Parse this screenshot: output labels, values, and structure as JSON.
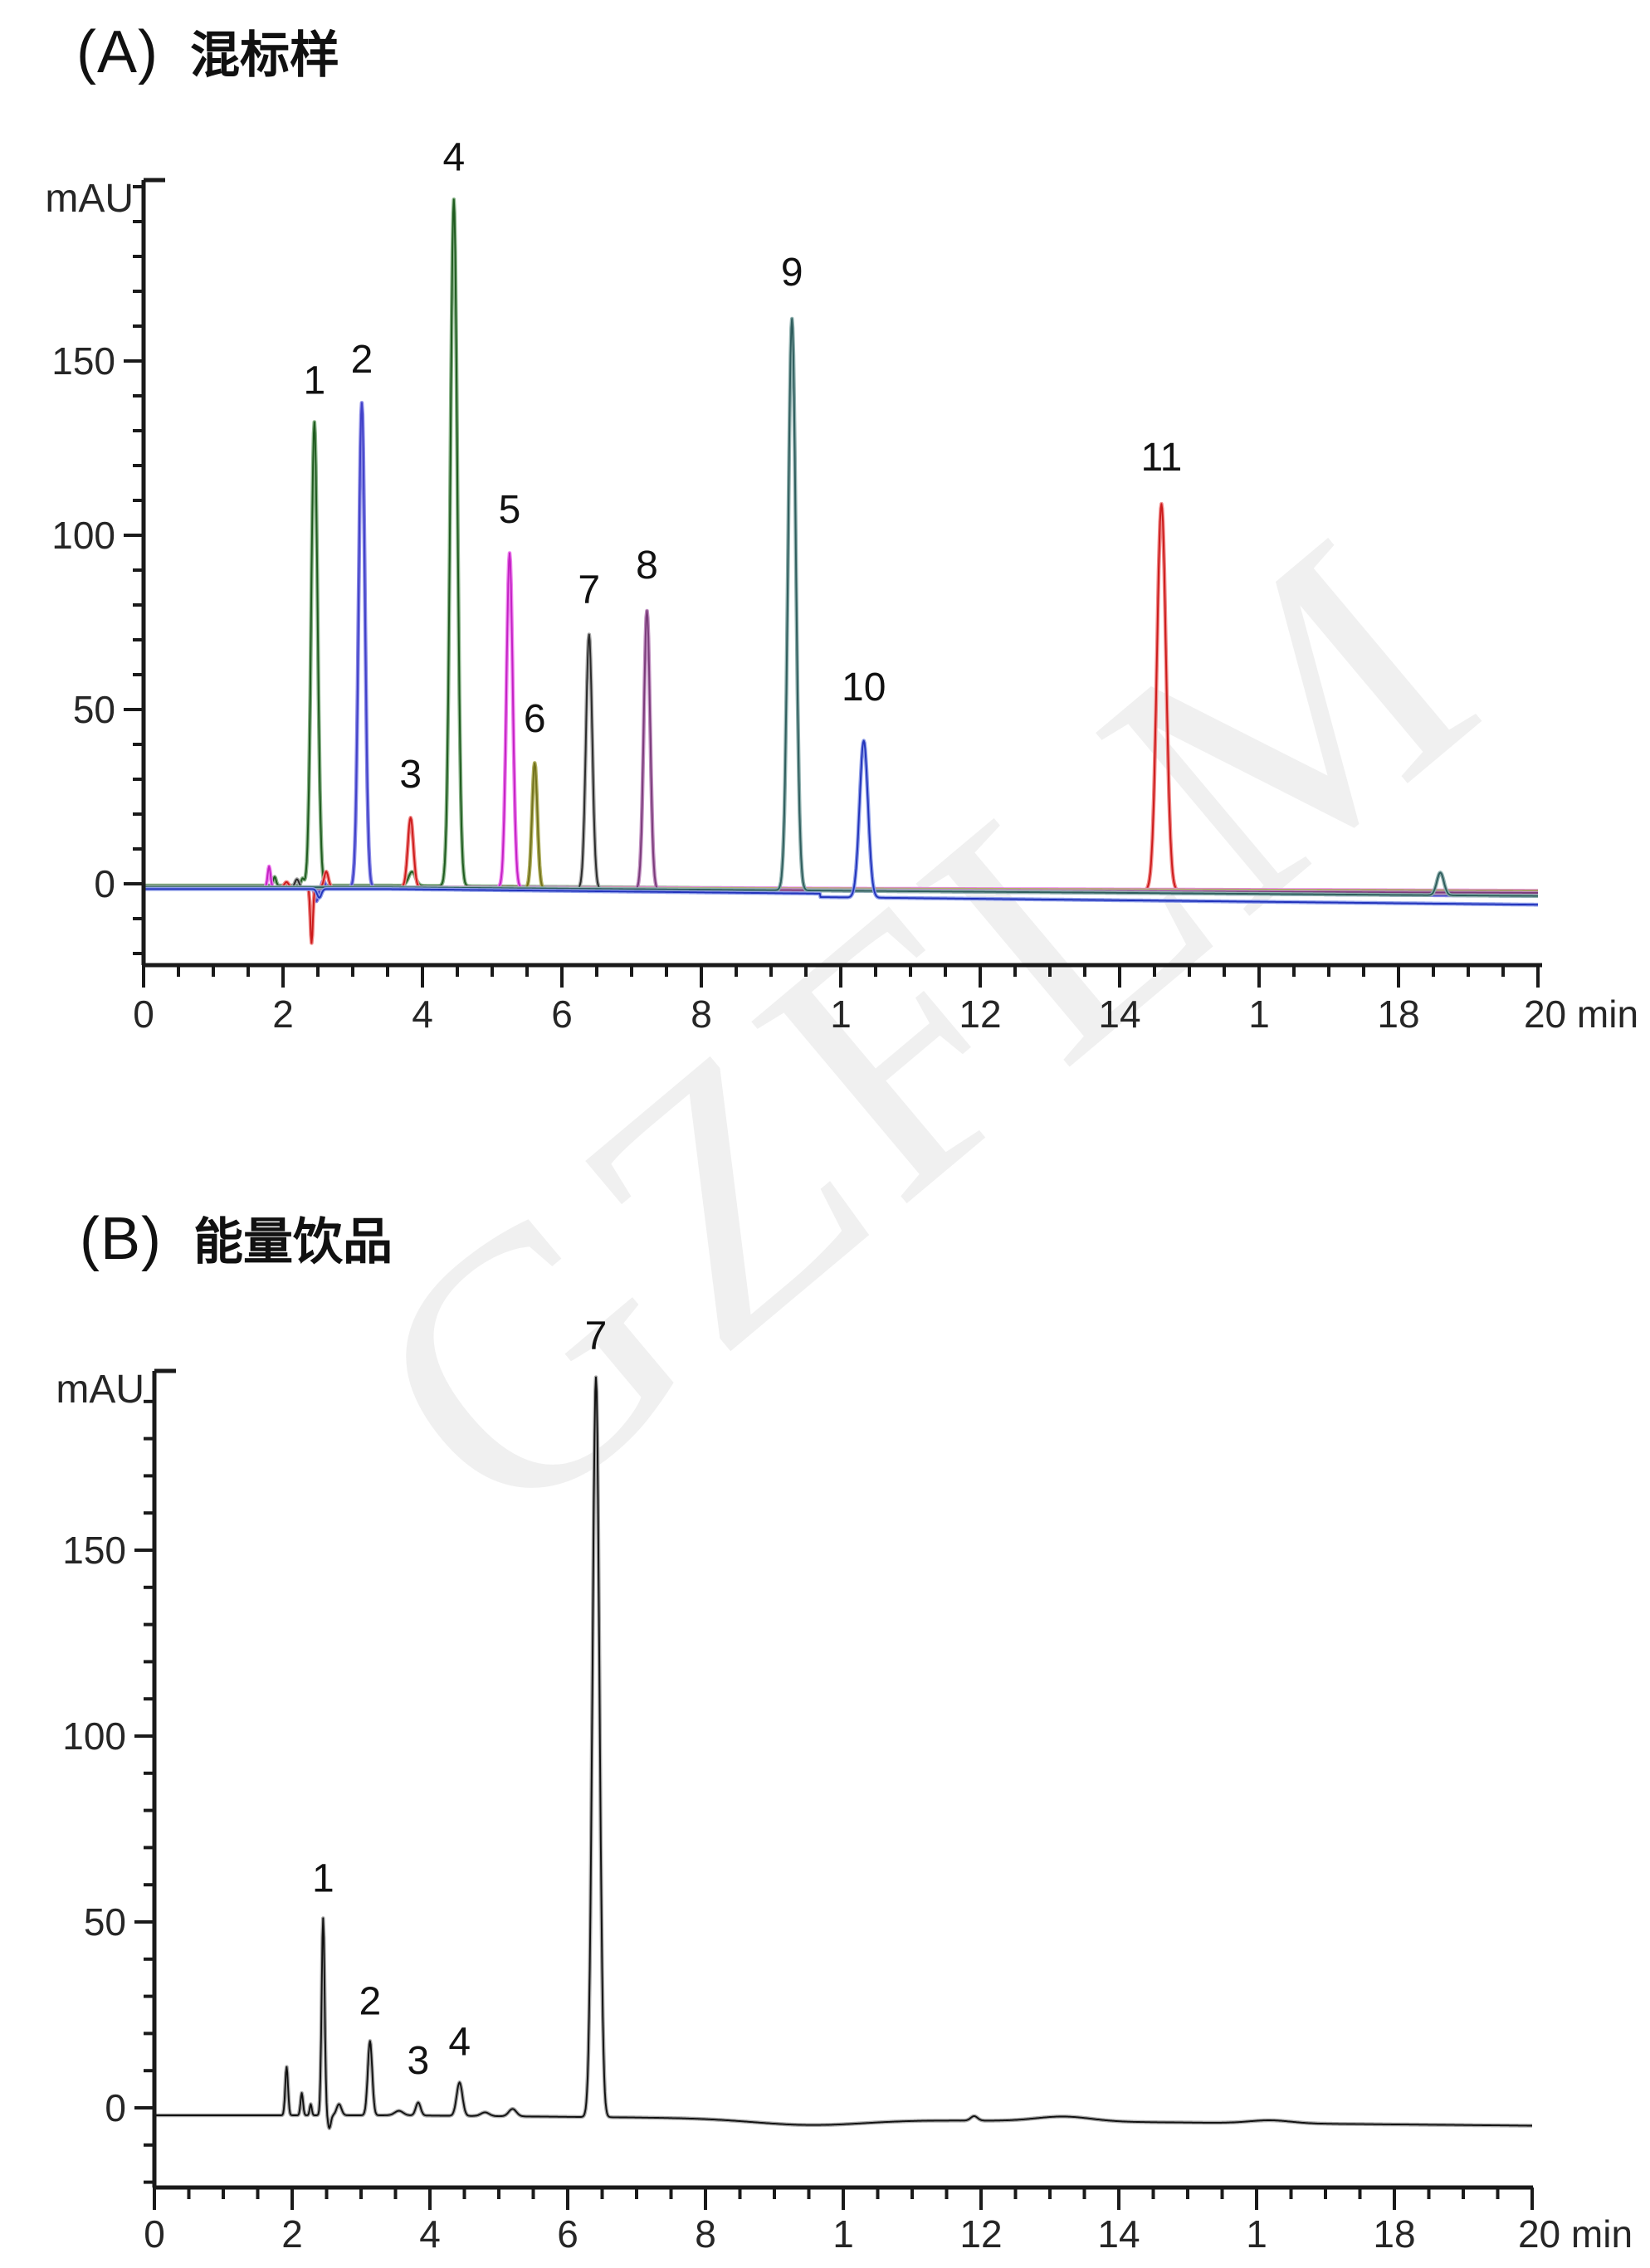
{
  "watermark": {
    "text": "GZFLM",
    "color": "#f0f0f0"
  },
  "chart_data": [
    {
      "id": "A",
      "type": "line",
      "title": "混标样",
      "title_prefix": "(A)",
      "xlabel": "min",
      "ylabel": "mAU",
      "x_axis": {
        "range_min": [
          0,
          20
        ],
        "major_tick_step": 2,
        "minor_tick_step": 0.5,
        "tick_labels": [
          "0",
          "2",
          "4",
          "6",
          "8",
          "1",
          "12",
          "14",
          "1",
          "18",
          "20 min"
        ]
      },
      "y_axis": {
        "unit": "mAU",
        "range_mau": [
          -23,
          202
        ],
        "major_ticks": [
          0,
          50,
          100,
          150
        ],
        "tick_labels": [
          "0",
          "50",
          "100",
          "150"
        ],
        "minor_tick_step": 10
      },
      "peaks": [
        {
          "label": "1",
          "rt_min": 2.45,
          "height_mau": 133,
          "color": "green"
        },
        {
          "label": "2",
          "rt_min": 3.13,
          "height_mau": 139,
          "color": "blue-violet"
        },
        {
          "label": "3",
          "rt_min": 3.83,
          "height_mau": 20,
          "color": "red"
        },
        {
          "label": "4",
          "rt_min": 4.45,
          "height_mau": 197,
          "color": "green"
        },
        {
          "label": "5",
          "rt_min": 5.25,
          "height_mau": 96,
          "color": "magenta"
        },
        {
          "label": "6",
          "rt_min": 5.61,
          "height_mau": 36,
          "color": "olive"
        },
        {
          "label": "7",
          "rt_min": 6.39,
          "height_mau": 73,
          "color": "dark-gray"
        },
        {
          "label": "8",
          "rt_min": 7.22,
          "height_mau": 80,
          "color": "plum"
        },
        {
          "label": "9",
          "rt_min": 9.3,
          "height_mau": 164,
          "color": "dark-teal"
        },
        {
          "label": "10",
          "rt_min": 10.33,
          "height_mau": 45,
          "color": "blue"
        },
        {
          "label": "11",
          "rt_min": 14.6,
          "height_mau": 111,
          "color": "red"
        },
        {
          "label": "",
          "rt_min": 18.6,
          "height_mau": 6.5,
          "color": "dark-teal"
        }
      ],
      "traces": [
        {
          "name": "green",
          "light": "#8bb58b",
          "dark": "#1e5a1e",
          "b0": -0.5,
          "b1": -3,
          "pk": [
            {
              "t": 2.45,
              "h": 133,
              "s": 0.045
            },
            {
              "t": 4.45,
              "h": 197,
              "s": 0.05
            },
            {
              "t": 3.85,
              "h": 4,
              "s": 0.05
            },
            {
              "t": 1.88,
              "h": 2.5,
              "s": 0.02
            },
            {
              "t": 2.28,
              "h": 2,
              "s": 0.02
            }
          ]
        },
        {
          "name": "blue-violet",
          "light": "#8989e6",
          "dark": "#4040c8",
          "b0": -1,
          "b1": -3.5,
          "pk": [
            {
              "t": 3.13,
              "h": 139,
              "s": 0.045
            },
            {
              "t": 2.48,
              "h": -4,
              "s": 0.025
            },
            {
              "t": 2.58,
              "h": 2,
              "s": 0.02
            }
          ]
        },
        {
          "name": "red",
          "light": "#f08a8a",
          "dark": "#cc1a1a",
          "b0": -1,
          "b1": -2.5,
          "pk": [
            {
              "t": 3.83,
              "h": 20,
              "s": 0.04
            },
            {
              "t": 14.6,
              "h": 111,
              "s": 0.065
            },
            {
              "t": 2.41,
              "h": -16,
              "s": 0.018
            },
            {
              "t": 2.62,
              "h": 4.5,
              "s": 0.03
            },
            {
              "t": 2.05,
              "h": 1.5,
              "s": 0.03
            }
          ]
        },
        {
          "name": "magenta",
          "light": "#ee82ee",
          "dark": "#c321c3",
          "b0": -1,
          "b1": -2,
          "pk": [
            {
              "t": 5.25,
              "h": 96,
              "s": 0.045
            },
            {
              "t": 1.8,
              "h": 6,
              "s": 0.02
            }
          ]
        },
        {
          "name": "olive",
          "light": "#b0b060",
          "dark": "#72721c",
          "b0": -1.2,
          "b1": -2.2,
          "pk": [
            {
              "t": 5.61,
              "h": 36,
              "s": 0.038
            }
          ]
        },
        {
          "name": "dark-gray",
          "light": "#a8a8a8",
          "dark": "#2a2a2a",
          "b0": -1.2,
          "b1": -2.8,
          "pk": [
            {
              "t": 6.39,
              "h": 73,
              "s": 0.045
            },
            {
              "t": 2.2,
              "h": 2.5,
              "s": 0.03
            }
          ]
        },
        {
          "name": "plum",
          "light": "#c08fc0",
          "dark": "#7a3b7a",
          "b0": -1.4,
          "b1": -2.6,
          "pk": [
            {
              "t": 7.22,
              "h": 80,
              "s": 0.045
            }
          ]
        },
        {
          "name": "dark-teal",
          "light": "#8fb0ae",
          "dark": "#2f5d5d",
          "b0": -1,
          "b1": -3.5,
          "pk": [
            {
              "t": 9.3,
              "h": 164,
              "s": 0.055
            },
            {
              "t": 18.6,
              "h": 6.5,
              "s": 0.05
            }
          ]
        },
        {
          "name": "blue",
          "light": "#8e9ee8",
          "dark": "#2233bb",
          "b0": -1.5,
          "b1": -5,
          "step": {
            "t": 9.7,
            "d": -1
          },
          "pk": [
            {
              "t": 10.33,
              "h": 45,
              "s": 0.06
            },
            {
              "t": 2.52,
              "h": -2.5,
              "s": 0.03
            }
          ]
        }
      ]
    },
    {
      "id": "B",
      "type": "line",
      "title": "能量饮品",
      "title_prefix": "(B)",
      "xlabel": "min",
      "ylabel": "mAU",
      "x_axis": {
        "range_min": [
          0,
          20
        ],
        "major_tick_step": 2,
        "minor_tick_step": 0.5,
        "tick_labels": [
          "0",
          "2",
          "4",
          "6",
          "8",
          "1",
          "12",
          "14",
          "1",
          "18",
          "20 min"
        ]
      },
      "y_axis": {
        "unit": "mAU",
        "range_mau": [
          -21,
          198
        ],
        "major_ticks": [
          0,
          50,
          100,
          150
        ],
        "tick_labels": [
          "0",
          "50",
          "100",
          "150"
        ],
        "minor_tick_step": 10
      },
      "peaks": [
        {
          "label": "1",
          "rt_min": 2.45,
          "height_mau": 51,
          "color": "black"
        },
        {
          "label": "2",
          "rt_min": 3.13,
          "height_mau": 18,
          "color": "black"
        },
        {
          "label": "3",
          "rt_min": 3.83,
          "height_mau": 2,
          "color": "black"
        },
        {
          "label": "4",
          "rt_min": 4.43,
          "height_mau": 7,
          "color": "black"
        },
        {
          "label": "7",
          "rt_min": 6.41,
          "height_mau": 197,
          "color": "black"
        }
      ],
      "traces": [
        {
          "name": "black",
          "light": "#a9a9a9",
          "dark": "#111111",
          "b0": -2,
          "b1": -4.8,
          "pk": [
            {
              "t": 1.92,
              "h": 13,
              "s": 0.02
            },
            {
              "t": 2.14,
              "h": 6,
              "s": 0.018
            },
            {
              "t": 2.27,
              "h": 3,
              "s": 0.015
            },
            {
              "t": 2.45,
              "h": 53,
              "s": 0.022
            },
            {
              "t": 2.54,
              "h": -3.5,
              "s": 0.022
            },
            {
              "t": 2.68,
              "h": 3,
              "s": 0.035
            },
            {
              "t": 3.13,
              "h": 20,
              "s": 0.032
            },
            {
              "t": 3.55,
              "h": 1.2,
              "s": 0.06
            },
            {
              "t": 3.83,
              "h": 3.5,
              "s": 0.035
            },
            {
              "t": 4.43,
              "h": 9,
              "s": 0.042
            },
            {
              "t": 4.8,
              "h": 1,
              "s": 0.06
            },
            {
              "t": 5.2,
              "h": 2,
              "s": 0.055
            },
            {
              "t": 6.41,
              "h": 199,
              "s": 0.05
            },
            {
              "t": 9.5,
              "h": -1.6,
              "s": 0.8
            },
            {
              "t": 11.9,
              "h": 1.2,
              "s": 0.05
            },
            {
              "t": 13.2,
              "h": 1.3,
              "s": 0.4
            },
            {
              "t": 16.2,
              "h": 0.8,
              "s": 0.3
            }
          ]
        }
      ]
    }
  ]
}
